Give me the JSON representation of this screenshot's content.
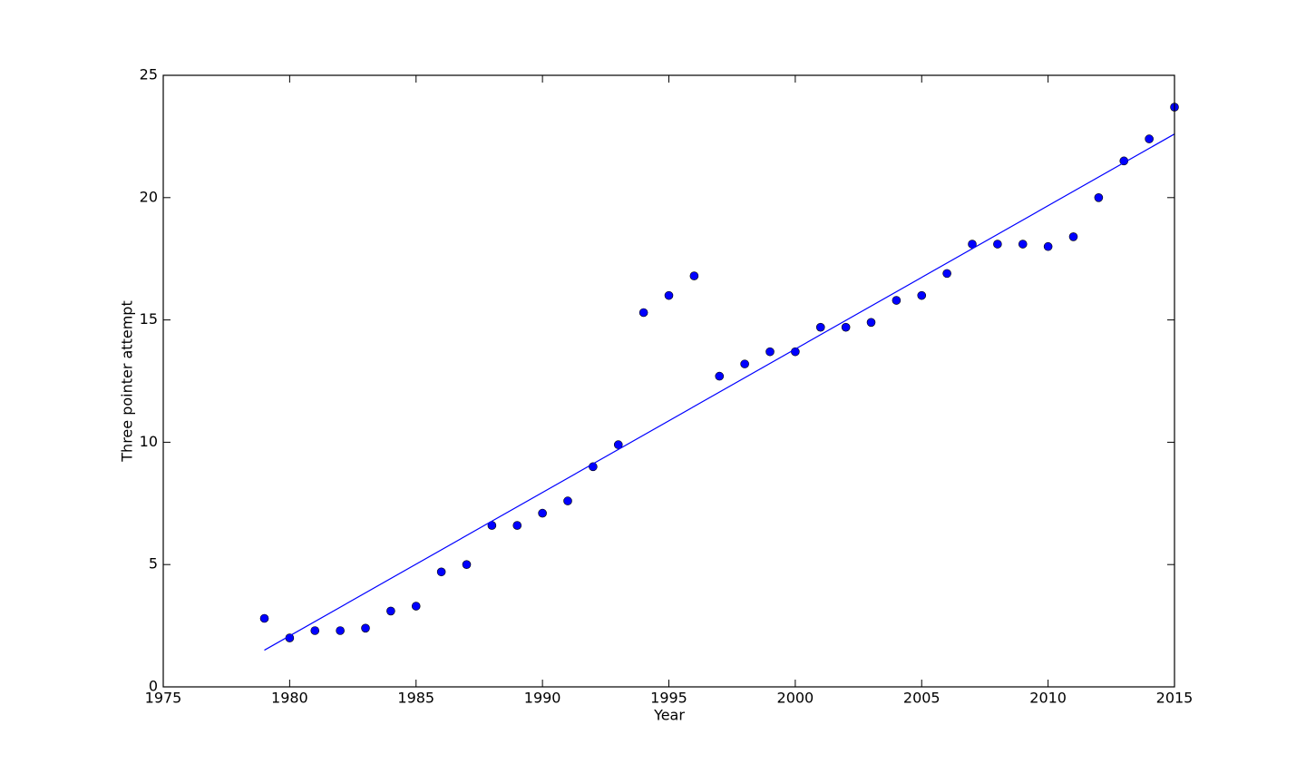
{
  "chart_data": {
    "type": "scatter",
    "xlabel": "Year",
    "ylabel": "Three pointer attempt",
    "x": [
      1979,
      1980,
      1981,
      1982,
      1983,
      1984,
      1985,
      1986,
      1987,
      1988,
      1989,
      1990,
      1991,
      1992,
      1993,
      1994,
      1995,
      1996,
      1997,
      1998,
      1999,
      2000,
      2001,
      2002,
      2003,
      2004,
      2005,
      2006,
      2007,
      2008,
      2009,
      2010,
      2011,
      2012,
      2013,
      2014,
      2015
    ],
    "series": [
      {
        "type": "scatter",
        "color": "#0000ff",
        "values": [
          2.8,
          2.0,
          2.3,
          2.3,
          2.4,
          3.1,
          3.3,
          4.7,
          5.0,
          6.6,
          6.6,
          7.1,
          7.6,
          9.0,
          9.9,
          15.3,
          16.0,
          16.8,
          12.7,
          13.2,
          13.7,
          13.7,
          14.7,
          14.7,
          14.9,
          15.8,
          16.0,
          16.9,
          18.1,
          18.1,
          18.1,
          18.0,
          18.4,
          20.0,
          21.5,
          22.4,
          23.7
        ]
      },
      {
        "type": "line",
        "color": "#0000ff",
        "x": [
          1979,
          2015
        ],
        "values": [
          1.5,
          22.6
        ]
      }
    ],
    "xlim": [
      1975,
      2015
    ],
    "ylim": [
      0,
      25
    ],
    "xticks": [
      1975,
      1980,
      1985,
      1990,
      1995,
      2000,
      2005,
      2010,
      2015
    ],
    "yticks": [
      0,
      5,
      10,
      15,
      20,
      25
    ],
    "grid": false
  }
}
